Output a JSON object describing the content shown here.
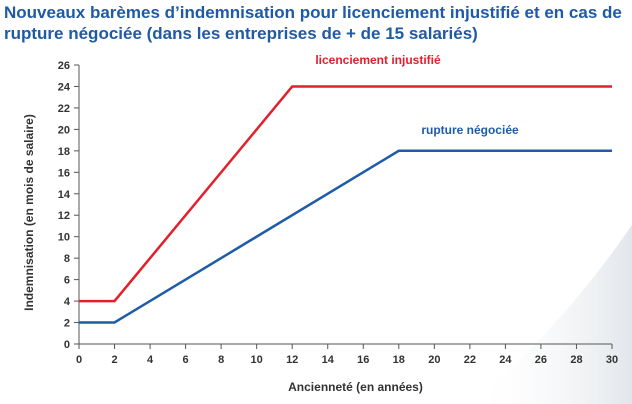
{
  "title": "Nouveaux barèmes d’indemnisation pour licenciement injustifié et en cas de rupture négociée (dans les entreprises de + de 15 salariés)",
  "chart_data": {
    "type": "line",
    "title": "Nouveaux barèmes d’indemnisation pour licenciement injustifié et en cas de rupture négociée (dans les entreprises de + de 15 salariés)",
    "xlabel": "Ancienneté (en années)",
    "ylabel": "Indemnisation (en mois de salaire)",
    "xlim": [
      0,
      30
    ],
    "ylim": [
      0,
      26
    ],
    "x_ticks": [
      "0",
      "2",
      "4",
      "6",
      "8",
      "10",
      "12",
      "14",
      "16",
      "18",
      "20",
      "22",
      "24",
      "26",
      "28",
      "30"
    ],
    "y_ticks": [
      "0",
      "2",
      "4",
      "6",
      "8",
      "10",
      "12",
      "14",
      "16",
      "18",
      "20",
      "22",
      "24",
      "26"
    ],
    "grid": false,
    "series": [
      {
        "name": "licenciement injustifié",
        "color": "#e3202a",
        "x": [
          0,
          2,
          12,
          30
        ],
        "y": [
          4,
          4,
          24,
          24
        ]
      },
      {
        "name": "rupture négociée",
        "color": "#1e5ca8",
        "x": [
          0,
          2,
          18,
          30
        ],
        "y": [
          2,
          2,
          18,
          18
        ]
      }
    ]
  }
}
